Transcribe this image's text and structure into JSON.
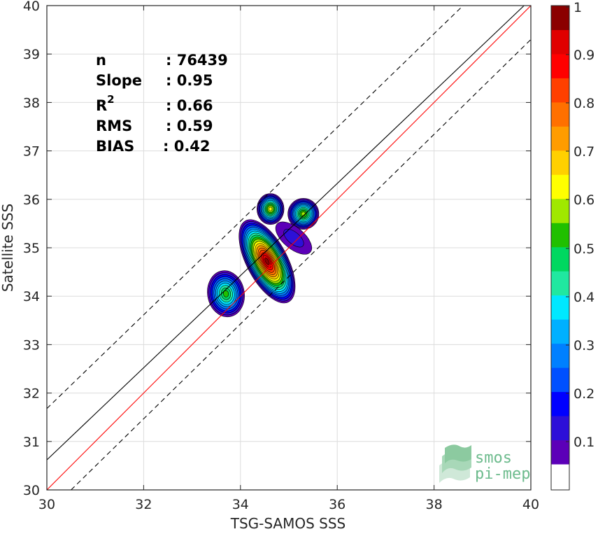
{
  "chart_data": {
    "type": "heatmap",
    "subtype": "density-contour-scatter",
    "xlabel": "TSG-SAMOS SSS",
    "ylabel": "Satellite SSS",
    "xlim": [
      30,
      40
    ],
    "ylim": [
      30,
      40
    ],
    "xticks": [
      30,
      32,
      34,
      36,
      38,
      40
    ],
    "yticks": [
      30,
      31,
      32,
      33,
      34,
      35,
      36,
      37,
      38,
      39,
      40
    ],
    "grid": true,
    "stats": [
      {
        "label": "n",
        "value": ": 76439"
      },
      {
        "label": "Slope",
        "value": ": 0.95"
      },
      {
        "label": "R",
        "superscript": "2",
        "value": ": 0.66"
      },
      {
        "label": "RMS",
        "value": ": 0.59"
      },
      {
        "label": "BIAS",
        "value": ": 0.42"
      }
    ],
    "lines": [
      {
        "name": "one-to-one",
        "color": "#ff0000",
        "style": "solid",
        "slope": 1,
        "intercept": 0
      },
      {
        "name": "fit",
        "color": "#000000",
        "style": "solid",
        "points": [
          [
            30,
            30.62
          ],
          [
            39.86,
            40
          ]
        ]
      },
      {
        "name": "upper-bound",
        "color": "#000000",
        "style": "dashed",
        "points": [
          [
            30,
            31.68
          ],
          [
            38.6,
            40
          ]
        ]
      },
      {
        "name": "lower-bound",
        "color": "#000000",
        "style": "dashed",
        "points": [
          [
            30.5,
            30
          ],
          [
            40,
            39.3
          ]
        ]
      }
    ],
    "density_peaks": [
      {
        "x": 34.55,
        "y": 34.72,
        "value": 1.0
      },
      {
        "x": 34.62,
        "y": 35.78,
        "value": 0.65
      },
      {
        "x": 35.3,
        "y": 35.7,
        "value": 0.55
      },
      {
        "x": 33.7,
        "y": 34.05,
        "value": 0.55
      }
    ],
    "colorbar": {
      "range": [
        0,
        1
      ],
      "ticks": [
        "0.1",
        "0.2",
        "0.3",
        "0.4",
        "0.5",
        "0.6",
        "0.7",
        "0.8",
        "0.9",
        "1"
      ],
      "levels": 18,
      "colors": [
        "#ffffff",
        "#5c00b8",
        "#2d10d8",
        "#0000ff",
        "#0050ff",
        "#0080ff",
        "#00b0ff",
        "#00e8ff",
        "#20e8a0",
        "#00d860",
        "#20c000",
        "#a0e800",
        "#ffff00",
        "#ffd000",
        "#ff9c00",
        "#ff7000",
        "#ff4000",
        "#ff0000",
        "#e00000",
        "#8b0000"
      ]
    }
  },
  "watermark": {
    "line1": "smos",
    "line2": "pi-mep",
    "color": "#6dbb8d"
  }
}
